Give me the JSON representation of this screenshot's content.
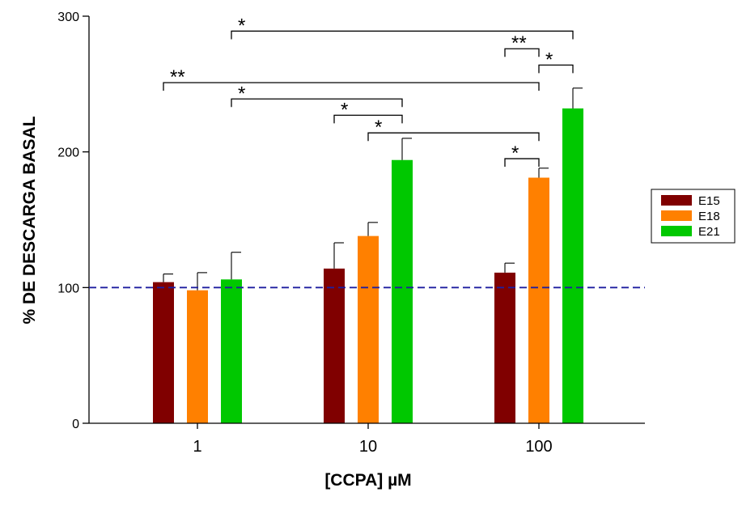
{
  "chart_data": {
    "type": "bar",
    "xlabel": "[CCPA] µM",
    "ylabel": "% DE DESCARGA BASAL",
    "categories": [
      "1",
      "10",
      "100"
    ],
    "ylim": [
      0,
      300
    ],
    "yticks": [
      0,
      100,
      200,
      300
    ],
    "series": [
      {
        "name": "E15",
        "color": "#800000",
        "values": [
          104,
          114,
          111
        ],
        "errors": [
          6,
          19,
          7
        ]
      },
      {
        "name": "E18",
        "color": "#ff8000",
        "values": [
          98,
          138,
          181
        ],
        "errors": [
          13,
          10,
          7
        ]
      },
      {
        "name": "E21",
        "color": "#00c800",
        "values": [
          106,
          194,
          232
        ],
        "errors": [
          20,
          16,
          15
        ]
      }
    ],
    "reference_line": {
      "y": 100,
      "color": "#1f1fa0",
      "style": "dashed"
    },
    "legend": {
      "placement": "right"
    },
    "significance": [
      {
        "label": "*",
        "from": [
          0,
          2
        ],
        "to": [
          2,
          2
        ],
        "level": 289
      },
      {
        "label": "**",
        "from": [
          2,
          0
        ],
        "to": [
          2,
          1
        ],
        "level": 276
      },
      {
        "label": "*",
        "from": [
          2,
          1
        ],
        "to": [
          2,
          2
        ],
        "level": 264
      },
      {
        "label": "**",
        "from": [
          0,
          0
        ],
        "to": [
          2,
          1
        ],
        "level": 251
      },
      {
        "label": "*",
        "from": [
          0,
          2
        ],
        "to": [
          1,
          2
        ],
        "level": 239
      },
      {
        "label": "*",
        "from": [
          1,
          0
        ],
        "to": [
          1,
          2
        ],
        "level": 227
      },
      {
        "label": "*",
        "from": [
          1,
          1
        ],
        "to": [
          2,
          1
        ],
        "level": 214
      },
      {
        "label": "*",
        "from": [
          2,
          0
        ],
        "to": [
          2,
          1
        ],
        "level": 195
      }
    ]
  }
}
